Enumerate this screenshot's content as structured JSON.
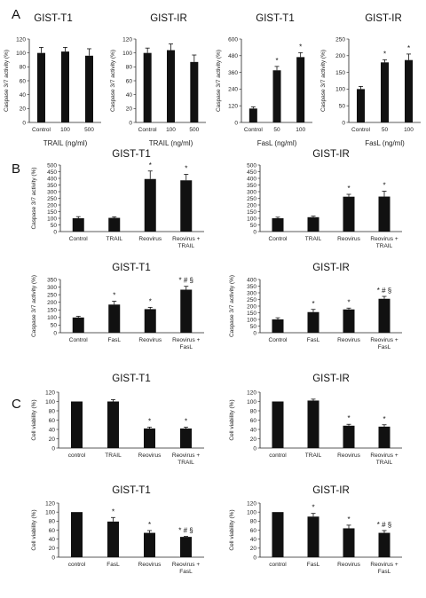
{
  "panel_labels": [
    "A",
    "B",
    "C"
  ],
  "chart_data": [
    {
      "id": "a1",
      "type": "bar",
      "panel": "A",
      "title": "GIST-T1",
      "ylabel": "Caspase 3/7 activity (%)",
      "xlabel": "TRAIL (ng/ml)",
      "ylim": [
        0,
        120
      ],
      "yticks": [
        0,
        20,
        40,
        60,
        80,
        100,
        120
      ],
      "categories": [
        "Control",
        "100",
        "500"
      ],
      "values": [
        100,
        102,
        96
      ],
      "errors": [
        8,
        6,
        10
      ],
      "annotations": [
        "",
        "",
        ""
      ]
    },
    {
      "id": "a2",
      "type": "bar",
      "panel": "A",
      "title": "GIST-IR",
      "ylabel": "Caspase 3/7 activity (%)",
      "xlabel": "TRAIL (ng/ml)",
      "ylim": [
        0,
        120
      ],
      "yticks": [
        0,
        20,
        40,
        60,
        80,
        100,
        120
      ],
      "categories": [
        "Control",
        "100",
        "500"
      ],
      "values": [
        100,
        104,
        87
      ],
      "errors": [
        7,
        9,
        10
      ],
      "annotations": [
        "",
        "",
        ""
      ]
    },
    {
      "id": "a3",
      "type": "bar",
      "panel": "A",
      "title": "GIST-T1",
      "ylabel": "Caspase 3/7 activity (%)",
      "xlabel": "FasL (ng/ml)",
      "ylim": [
        0,
        600
      ],
      "yticks": [
        0,
        120,
        240,
        360,
        480,
        600
      ],
      "categories": [
        "Control",
        "50",
        "100"
      ],
      "values": [
        100,
        375,
        470
      ],
      "errors": [
        12,
        28,
        32
      ],
      "annotations": [
        "",
        "*",
        "*"
      ]
    },
    {
      "id": "a4",
      "type": "bar",
      "panel": "A",
      "title": "GIST-IR",
      "ylabel": "Caspase 3/7 activity (%)",
      "xlabel": "FasL (ng/ml)",
      "ylim": [
        0,
        250
      ],
      "yticks": [
        0,
        50,
        100,
        150,
        200,
        250
      ],
      "categories": [
        "Control",
        "50",
        "100"
      ],
      "values": [
        100,
        180,
        187
      ],
      "errors": [
        8,
        8,
        18
      ],
      "annotations": [
        "",
        "*",
        "*"
      ]
    },
    {
      "id": "b1",
      "type": "bar",
      "panel": "B",
      "title": "GIST-T1",
      "ylabel": "Caspase 3/7 activity (%)",
      "xlabel": "",
      "ylim": [
        0,
        500
      ],
      "yticks": [
        0,
        50,
        100,
        150,
        200,
        250,
        300,
        350,
        400,
        450,
        500
      ],
      "categories": [
        "Control",
        "TRAIL",
        "Reovirus",
        [
          "Reovirus +",
          "TRAIL"
        ]
      ],
      "values": [
        100,
        103,
        395,
        385
      ],
      "errors": [
        12,
        8,
        60,
        45
      ],
      "annotations": [
        "",
        "",
        "*",
        "*"
      ]
    },
    {
      "id": "b2",
      "type": "bar",
      "panel": "B",
      "title": "GIST-IR",
      "ylabel": "",
      "xlabel": "",
      "ylim": [
        0,
        500
      ],
      "yticks": [
        0,
        50,
        100,
        150,
        200,
        250,
        300,
        350,
        400,
        450,
        500
      ],
      "categories": [
        "Control",
        "TRAIL",
        "Reovirus",
        [
          "Reovirus +",
          "TRAIL"
        ]
      ],
      "values": [
        100,
        108,
        262,
        263
      ],
      "errors": [
        8,
        8,
        18,
        40
      ],
      "annotations": [
        "",
        "",
        "*",
        "*"
      ]
    },
    {
      "id": "b3",
      "type": "bar",
      "panel": "B",
      "title": "GIST-T1",
      "ylabel": "Caspase 3/7 activity (%)",
      "xlabel": "",
      "ylim": [
        0,
        350
      ],
      "yticks": [
        0,
        50,
        100,
        150,
        200,
        250,
        300,
        350
      ],
      "categories": [
        "Control",
        "FasL",
        "Reovirus",
        [
          "Reovirus +",
          "FasL"
        ]
      ],
      "values": [
        100,
        185,
        155,
        283
      ],
      "errors": [
        8,
        22,
        12,
        22
      ],
      "annotations": [
        "",
        "*",
        "*",
        "* # §"
      ]
    },
    {
      "id": "b4",
      "type": "bar",
      "panel": "B",
      "title": "GIST-IR",
      "ylabel": "Caspase 3/7 activity (%)",
      "xlabel": "",
      "ylim": [
        0,
        400
      ],
      "yticks": [
        0,
        50,
        100,
        150,
        200,
        250,
        300,
        350,
        400
      ],
      "categories": [
        "Control",
        "FasL",
        "Reovirus",
        [
          "Reovirus +",
          "FasL"
        ]
      ],
      "values": [
        100,
        155,
        175,
        255
      ],
      "errors": [
        12,
        20,
        10,
        18
      ],
      "annotations": [
        "",
        "*",
        "*",
        "* # §"
      ]
    },
    {
      "id": "c1",
      "type": "bar",
      "panel": "C",
      "title": "GIST-T1",
      "ylabel": "Cell viability (%)",
      "xlabel": "",
      "ylim": [
        0,
        120
      ],
      "yticks": [
        0,
        20,
        40,
        60,
        80,
        100,
        120
      ],
      "categories": [
        "control",
        "TRAIL",
        "Reovirus",
        [
          "Reovirus +",
          "TRAIL"
        ]
      ],
      "values": [
        100,
        100,
        42,
        42
      ],
      "errors": [
        0,
        4,
        3,
        3
      ],
      "annotations": [
        "",
        "",
        "*",
        "*"
      ]
    },
    {
      "id": "c2",
      "type": "bar",
      "panel": "C",
      "title": "GIST-IR",
      "ylabel": "Cell viability (%)",
      "xlabel": "",
      "ylim": [
        0,
        120
      ],
      "yticks": [
        0,
        20,
        40,
        60,
        80,
        100,
        120
      ],
      "categories": [
        "control",
        "TRAIL",
        "Reovirus",
        [
          "Reovirus +",
          "TRAIL"
        ]
      ],
      "values": [
        100,
        102,
        48,
        46
      ],
      "errors": [
        0,
        3,
        3,
        4
      ],
      "annotations": [
        "",
        "",
        "*",
        "*"
      ]
    },
    {
      "id": "c3",
      "type": "bar",
      "panel": "C",
      "title": "GIST-T1",
      "ylabel": "Cell viability (%)",
      "xlabel": "",
      "ylim": [
        0,
        120
      ],
      "yticks": [
        0,
        20,
        40,
        60,
        80,
        100,
        120
      ],
      "categories": [
        "control",
        "FasL",
        "Reovirus",
        [
          "Reovirus +",
          "FasL"
        ]
      ],
      "values": [
        100,
        79,
        54,
        45
      ],
      "errors": [
        0,
        9,
        5,
        1
      ],
      "annotations": [
        "",
        "*",
        "*",
        "* # §"
      ]
    },
    {
      "id": "c4",
      "type": "bar",
      "panel": "C",
      "title": "GIST-IR",
      "ylabel": "Cell viability (%)",
      "xlabel": "",
      "ylim": [
        0,
        120
      ],
      "yticks": [
        0,
        20,
        40,
        60,
        80,
        100,
        120
      ],
      "categories": [
        "control",
        "FasL",
        "Reovirus",
        [
          "Reovirus +",
          "FasL"
        ]
      ],
      "values": [
        100,
        90,
        64,
        54
      ],
      "errors": [
        0,
        7,
        7,
        5
      ],
      "annotations": [
        "",
        "*",
        "*",
        "* # §"
      ]
    }
  ],
  "colors": {
    "bar": "#111111",
    "axis": "#222222"
  }
}
